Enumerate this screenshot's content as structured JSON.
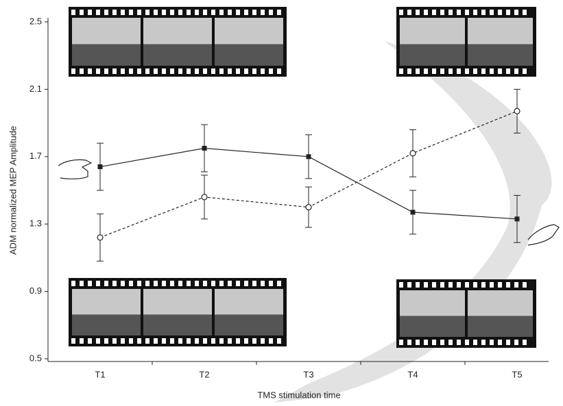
{
  "chart_data": {
    "type": "line",
    "y_label": "ADM normalized MEP Amplitude",
    "x_label": "TMS stimulation time",
    "categories": [
      "T1",
      "T2",
      "T3",
      "T4",
      "T5"
    ],
    "ylim": [
      0.5,
      2.5
    ],
    "yticks": [
      0.5,
      0.9,
      1.3,
      1.7,
      2.1,
      2.5
    ],
    "series": [
      {
        "color": "#222222",
        "line_style": "solid",
        "marker": "square",
        "values": [
          1.64,
          1.75,
          1.7,
          1.37,
          1.33
        ],
        "errors": [
          0.14,
          0.14,
          0.13,
          0.13,
          0.14
        ]
      },
      {
        "color": "#222222",
        "line_style": "dashed",
        "marker": "circle",
        "values": [
          1.22,
          1.46,
          1.4,
          1.72,
          1.97
        ],
        "errors": [
          0.14,
          0.13,
          0.12,
          0.14,
          0.13
        ]
      }
    ]
  }
}
